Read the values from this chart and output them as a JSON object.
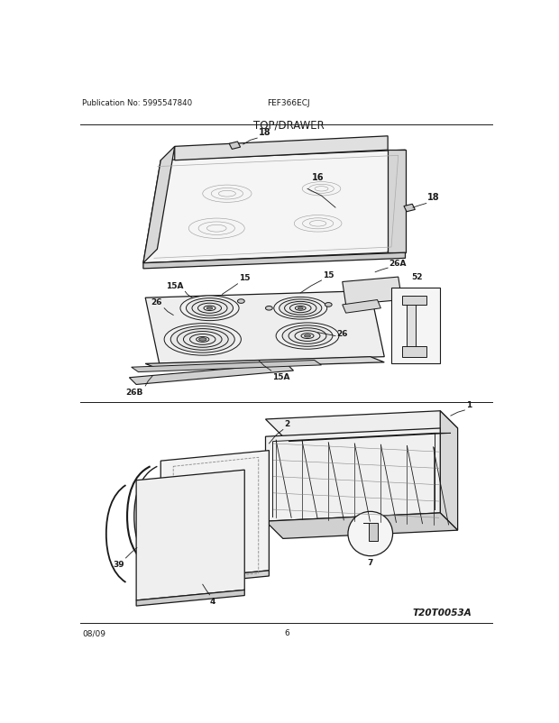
{
  "title": "TOP/DRAWER",
  "model": "FEF366ECJ",
  "publication": "Publication No: 5995547840",
  "date": "08/09",
  "page": "6",
  "diagram_id": "T20T0053A",
  "bg_color": "#ffffff",
  "lc": "#1a1a1a",
  "tc": "#1a1a1a"
}
